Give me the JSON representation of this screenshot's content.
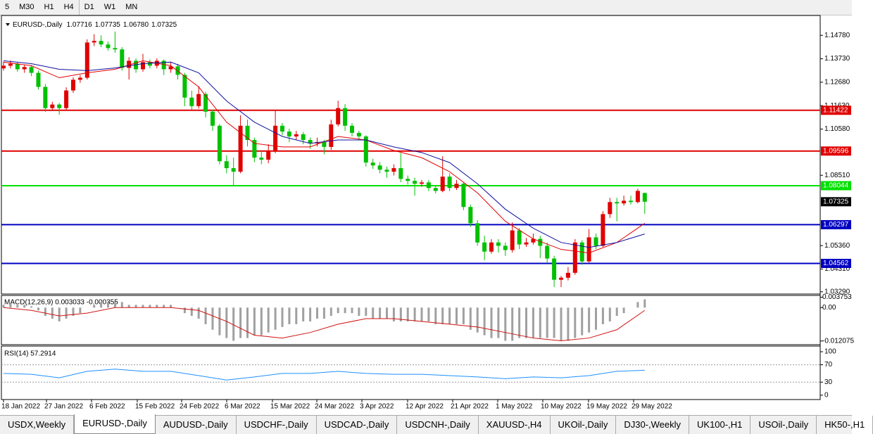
{
  "toolbar": [
    "5",
    "M30",
    "H1",
    "H4",
    "D1",
    "W1",
    "MN"
  ],
  "main": {
    "symbol": "EURUSD-,Daily",
    "ohlc": [
      "1.07716",
      "1.07735",
      "1.06780",
      "1.07325"
    ],
    "ylim": [
      1.0319,
      1.1567
    ],
    "yticks": [
      {
        "value": 1.1478,
        "label": "1.14780"
      },
      {
        "value": 1.1373,
        "label": "1.13730"
      },
      {
        "value": 1.1268,
        "label": "1.12680"
      },
      {
        "value": 1.1163,
        "label": "1.11630"
      },
      {
        "value": 1.1058,
        "label": "1.10580"
      },
      {
        "value": 1.0851,
        "label": "1.08510"
      },
      {
        "value": 1.0536,
        "label": "1.05360"
      },
      {
        "value": 1.0431,
        "label": "1.04310"
      },
      {
        "value": 1.0329,
        "label": "1.03290"
      }
    ],
    "up_color": "#e00000",
    "down_color": "#00c000",
    "candles": [
      [
        1.133,
        1.136,
        1.132,
        1.1342
      ],
      [
        1.1342,
        1.1365,
        1.133,
        1.1351
      ],
      [
        1.1351,
        1.1358,
        1.1315,
        1.1326
      ],
      [
        1.1326,
        1.1345,
        1.131,
        1.1336
      ],
      [
        1.1336,
        1.1345,
        1.1295,
        1.131
      ],
      [
        1.131,
        1.132,
        1.1235,
        1.1247
      ],
      [
        1.1247,
        1.126,
        1.1135,
        1.1152
      ],
      [
        1.1152,
        1.118,
        1.114,
        1.1168
      ],
      [
        1.1168,
        1.1175,
        1.1122,
        1.1152
      ],
      [
        1.1152,
        1.1245,
        1.114,
        1.1231
      ],
      [
        1.1231,
        1.129,
        1.122,
        1.1279
      ],
      [
        1.1279,
        1.13,
        1.1265,
        1.1288
      ],
      [
        1.1288,
        1.146,
        1.128,
        1.1446
      ],
      [
        1.1446,
        1.1483,
        1.143,
        1.1453
      ],
      [
        1.1453,
        1.1478,
        1.1425,
        1.1437
      ],
      [
        1.1437,
        1.145,
        1.141,
        1.1421
      ],
      [
        1.1421,
        1.1495,
        1.14,
        1.1415
      ],
      [
        1.1415,
        1.1425,
        1.132,
        1.1332
      ],
      [
        1.1332,
        1.138,
        1.128,
        1.1364
      ],
      [
        1.1364,
        1.1375,
        1.131,
        1.1326
      ],
      [
        1.1326,
        1.1395,
        1.1315,
        1.1358
      ],
      [
        1.1358,
        1.137,
        1.133,
        1.1342
      ],
      [
        1.1342,
        1.1375,
        1.133,
        1.1364
      ],
      [
        1.1364,
        1.137,
        1.13,
        1.1326
      ],
      [
        1.1326,
        1.136,
        1.131,
        1.1339
      ],
      [
        1.1339,
        1.135,
        1.128,
        1.1301
      ],
      [
        1.1301,
        1.131,
        1.116,
        1.1199
      ],
      [
        1.1199,
        1.123,
        1.1145,
        1.1161
      ],
      [
        1.1161,
        1.125,
        1.115,
        1.1215
      ],
      [
        1.1215,
        1.1225,
        1.111,
        1.1136
      ],
      [
        1.1136,
        1.1145,
        1.105,
        1.1073
      ],
      [
        1.1073,
        1.108,
        1.09,
        1.0914
      ],
      [
        1.0914,
        1.094,
        1.086,
        1.0883
      ],
      [
        1.0883,
        1.093,
        1.0805,
        1.0867
      ],
      [
        1.0867,
        1.112,
        1.086,
        1.1073
      ],
      [
        1.1073,
        1.11,
        1.098,
        1.1009
      ],
      [
        1.1009,
        1.102,
        1.091,
        1.093
      ],
      [
        1.093,
        1.096,
        1.09,
        1.0921
      ],
      [
        1.0921,
        1.099,
        1.0905,
        1.0962
      ],
      [
        1.0962,
        1.114,
        1.095,
        1.1073
      ],
      [
        1.1073,
        1.1085,
        1.103,
        1.1047
      ],
      [
        1.1047,
        1.106,
        1.1,
        1.1025
      ],
      [
        1.1025,
        1.105,
        1.101,
        1.1035
      ],
      [
        1.1035,
        1.1045,
        1.099,
        1.1009
      ],
      [
        1.1009,
        1.102,
        1.097,
        1.0994
      ],
      [
        1.0994,
        1.102,
        1.098,
        1.1
      ],
      [
        1.1,
        1.101,
        1.0945,
        1.0978
      ],
      [
        1.0978,
        1.11,
        1.0965,
        1.1079
      ],
      [
        1.1079,
        1.1185,
        1.107,
        1.1152
      ],
      [
        1.1152,
        1.117,
        1.105,
        1.1073
      ],
      [
        1.1073,
        1.1085,
        1.1025,
        1.1041
      ],
      [
        1.1041,
        1.105,
        1.101,
        1.1025
      ],
      [
        1.1025,
        1.103,
        1.089,
        1.0908
      ],
      [
        1.0908,
        1.0925,
        1.088,
        1.0895
      ],
      [
        1.0895,
        1.091,
        1.086,
        1.0876
      ],
      [
        1.0876,
        1.089,
        1.084,
        1.0867
      ],
      [
        1.0867,
        1.09,
        1.085,
        1.0883
      ],
      [
        1.0883,
        1.095,
        1.082,
        1.0835
      ],
      [
        1.0835,
        1.085,
        1.081,
        1.0826
      ],
      [
        1.0826,
        1.084,
        1.076,
        1.0813
      ],
      [
        1.0813,
        1.083,
        1.08,
        1.0819
      ],
      [
        1.0819,
        1.083,
        1.078,
        1.0794
      ],
      [
        1.0794,
        1.0805,
        1.077,
        1.0781
      ],
      [
        1.0781,
        1.0936,
        1.0775,
        1.0845
      ],
      [
        1.0845,
        1.086,
        1.078,
        1.0794
      ],
      [
        1.0794,
        1.083,
        1.0785,
        1.0813
      ],
      [
        1.0813,
        1.082,
        1.0695,
        1.0709
      ],
      [
        1.0709,
        1.072,
        1.062,
        1.0636
      ],
      [
        1.0636,
        1.065,
        1.0535,
        1.055
      ],
      [
        1.055,
        1.058,
        1.047,
        1.0509
      ],
      [
        1.0509,
        1.0565,
        1.05,
        1.055
      ],
      [
        1.055,
        1.0565,
        1.0505,
        1.0535
      ],
      [
        1.0535,
        1.055,
        1.049,
        1.0516
      ],
      [
        1.0516,
        1.064,
        1.0505,
        1.0604
      ],
      [
        1.0604,
        1.0615,
        1.052,
        1.0541
      ],
      [
        1.0541,
        1.057,
        1.053,
        1.055
      ],
      [
        1.055,
        1.059,
        1.054,
        1.0566
      ],
      [
        1.0566,
        1.058,
        1.048,
        1.0535
      ],
      [
        1.0535,
        1.055,
        1.046,
        1.0478
      ],
      [
        1.0478,
        1.049,
        1.035,
        1.0383
      ],
      [
        1.0383,
        1.04,
        1.035,
        1.0392
      ],
      [
        1.0392,
        1.044,
        1.038,
        1.0414
      ],
      [
        1.0414,
        1.0565,
        1.0405,
        1.055
      ],
      [
        1.055,
        1.056,
        1.045,
        1.0465
      ],
      [
        1.0465,
        1.061,
        1.046,
        1.0573
      ],
      [
        1.0573,
        1.059,
        1.052,
        1.0535
      ],
      [
        1.0535,
        1.069,
        1.053,
        1.0677
      ],
      [
        1.0677,
        1.075,
        1.066,
        1.0731
      ],
      [
        1.0731,
        1.075,
        1.0645,
        1.0725
      ],
      [
        1.0725,
        1.076,
        1.0715,
        1.0737
      ],
      [
        1.0737,
        1.076,
        1.072,
        1.0731
      ],
      [
        1.0731,
        1.079,
        1.0725,
        1.0781
      ],
      [
        1.07716,
        1.07735,
        1.0678,
        1.07325
      ]
    ],
    "ma_fast": {
      "color": "#e00000",
      "x": [
        0,
        4,
        8,
        12,
        16,
        20,
        24,
        28,
        32,
        36,
        40,
        44,
        48,
        52,
        56,
        60,
        64,
        68,
        72,
        76,
        80,
        84,
        88,
        92
      ],
      "values": [
        1.1358,
        1.1342,
        1.1288,
        1.131,
        1.1326,
        1.1364,
        1.1342,
        1.1247,
        1.1089,
        1.0994,
        1.0978,
        1.0978,
        1.1025,
        1.1009,
        1.0962,
        1.093,
        1.0867,
        1.0772,
        1.0645,
        1.0566,
        1.0519,
        1.0503,
        1.055,
        1.0636
      ]
    },
    "ma_slow": {
      "color": "#1010a0",
      "x": [
        0,
        4,
        8,
        12,
        16,
        20,
        24,
        28,
        32,
        36,
        40,
        44,
        48,
        52,
        56,
        60,
        64,
        68,
        72,
        76,
        80,
        84,
        88,
        92
      ],
      "values": [
        1.1364,
        1.1351,
        1.1326,
        1.132,
        1.1332,
        1.1351,
        1.1358,
        1.131,
        1.1184,
        1.1089,
        1.1025,
        1.0994,
        1.1009,
        1.1009,
        1.0978,
        1.0953,
        1.0908,
        1.0813,
        1.0699,
        1.0614,
        1.055,
        1.0528,
        1.055,
        1.0588
      ]
    },
    "hlines": [
      {
        "value": 1.11422,
        "label": "1.11422",
        "color": "#e00000"
      },
      {
        "value": 1.09596,
        "label": "1.09596",
        "color": "#e00000"
      },
      {
        "value": 1.08044,
        "label": "1.08044",
        "color": "#00e000"
      },
      {
        "value": 1.06297,
        "label": "1.06297",
        "color": "#0000c0"
      },
      {
        "value": 1.04562,
        "label": "1.04562",
        "color": "#0000c0"
      }
    ],
    "last_price": {
      "value": 1.07325,
      "label": "1.07325"
    }
  },
  "macd": {
    "label": "MACD(12,26,9) 0.003033 -0.000355",
    "ylim": [
      -0.0134,
      0.0044
    ],
    "yticks": [
      {
        "value": 0.003753,
        "label": "0.003753"
      },
      {
        "value": 0,
        "label": "0.00"
      },
      {
        "value": -0.012075,
        "label": "-0.012075"
      }
    ],
    "histogram_color": "#a0a0a0",
    "histogram": [
      0.001,
      0.0015,
      0.001,
      0.001,
      0.0005,
      -0.001,
      -0.003,
      -0.004,
      -0.005,
      -0.004,
      -0.003,
      -0.002,
      0,
      0.001,
      0.002,
      0.002,
      0.002,
      0.002,
      0.001,
      0.001,
      0.001,
      0.001,
      0.001,
      0.001,
      0.001,
      0,
      -0.002,
      -0.003,
      -0.004,
      -0.006,
      -0.008,
      -0.01,
      -0.011,
      -0.012,
      -0.011,
      -0.011,
      -0.01,
      -0.01,
      -0.009,
      -0.008,
      -0.007,
      -0.006,
      -0.006,
      -0.005,
      -0.005,
      -0.004,
      -0.004,
      -0.003,
      -0.002,
      -0.002,
      -0.002,
      -0.003,
      -0.003,
      -0.004,
      -0.004,
      -0.004,
      -0.005,
      -0.005,
      -0.005,
      -0.005,
      -0.005,
      -0.005,
      -0.006,
      -0.006,
      -0.006,
      -0.006,
      -0.006,
      -0.008,
      -0.009,
      -0.01,
      -0.011,
      -0.011,
      -0.012,
      -0.012,
      -0.011,
      -0.011,
      -0.011,
      -0.011,
      -0.011,
      -0.011,
      -0.012,
      -0.012,
      -0.011,
      -0.01,
      -0.009,
      -0.008,
      -0.006,
      -0.005,
      -0.003,
      -0.002,
      0,
      0.002,
      0.003
    ],
    "signal": {
      "color": "#d01010",
      "x": [
        0,
        4,
        8,
        12,
        16,
        20,
        24,
        28,
        32,
        36,
        40,
        44,
        48,
        52,
        56,
        60,
        64,
        68,
        72,
        76,
        80,
        84,
        88,
        92
      ],
      "values": [
        0,
        -0.001,
        -0.003,
        -0.002,
        0,
        0,
        0,
        -0.001,
        -0.005,
        -0.01,
        -0.011,
        -0.009,
        -0.006,
        -0.004,
        -0.004,
        -0.005,
        -0.006,
        -0.007,
        -0.009,
        -0.011,
        -0.012,
        -0.011,
        -0.008,
        -0.001
      ]
    }
  },
  "rsi": {
    "label": "RSI(14) 57.2914",
    "ylim": [
      -10,
      113
    ],
    "yticks": [
      100,
      70,
      30,
      0
    ],
    "levels": [
      70,
      30
    ],
    "color": "#1e90ff",
    "x": [
      0,
      4,
      8,
      12,
      16,
      20,
      24,
      28,
      32,
      36,
      40,
      44,
      48,
      52,
      56,
      60,
      64,
      68,
      72,
      76,
      80,
      84,
      88,
      92
    ],
    "values": [
      50,
      48,
      40,
      55,
      60,
      55,
      55,
      45,
      35,
      42,
      50,
      50,
      55,
      50,
      48,
      48,
      45,
      42,
      38,
      42,
      40,
      45,
      55,
      57.2914
    ]
  },
  "dates": [
    "18 Jan 2022",
    "27 Jan 2022",
    "6 Feb 2022",
    "15 Feb 2022",
    "24 Feb 2022",
    "6 Mar 2022",
    "15 Mar 2022",
    "24 Mar 2022",
    "3 Apr 2022",
    "12 Apr 2022",
    "21 Apr 2022",
    "1 May 2022",
    "10 May 2022",
    "19 May 2022",
    "29 May 2022"
  ],
  "tabs": [
    "USDX,Weekly",
    "EURUSD-,Daily",
    "AUDUSD-,Daily",
    "USDCHF-,Daily",
    "USDCAD-,Daily",
    "USDCNH-,Daily",
    "XAUUSD-,H4",
    "UKOil-,Daily",
    "DJ30-,Weekly",
    "UK100-,H1",
    "USOil-,Daily",
    "HK50-,H1"
  ]
}
